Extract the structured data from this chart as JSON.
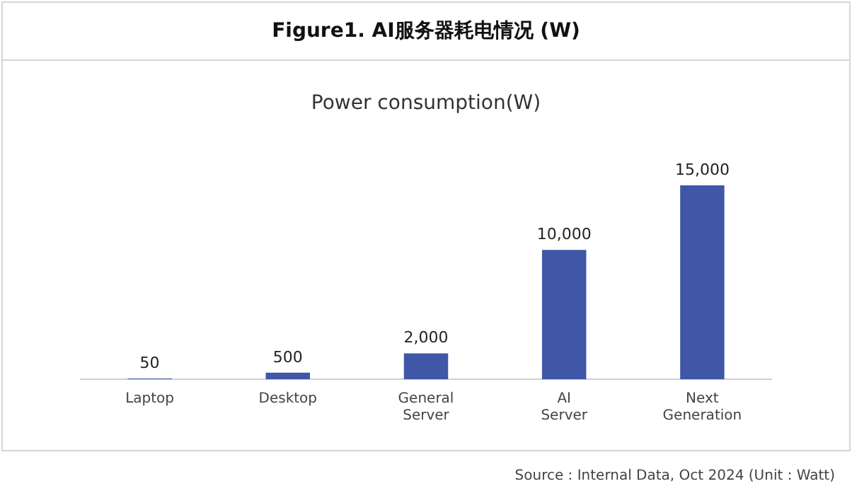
{
  "chart_data": {
    "type": "bar",
    "title": "Figure1. AI服务器耗电情况 (W)",
    "subtitle": "Power consumption(W)",
    "categories": [
      "Laptop",
      "Desktop",
      "General Server",
      "AI Server",
      "Next Generation"
    ],
    "values": [
      50,
      500,
      2000,
      10000,
      15000
    ],
    "value_labels": [
      "50",
      "500",
      "2,000",
      "10,000",
      "15,000"
    ],
    "color": "#3f57a6",
    "grid": false,
    "legend": false,
    "annotations": [
      "Source : Internal Data, Oct 2024 (Unit : Watt)"
    ]
  }
}
